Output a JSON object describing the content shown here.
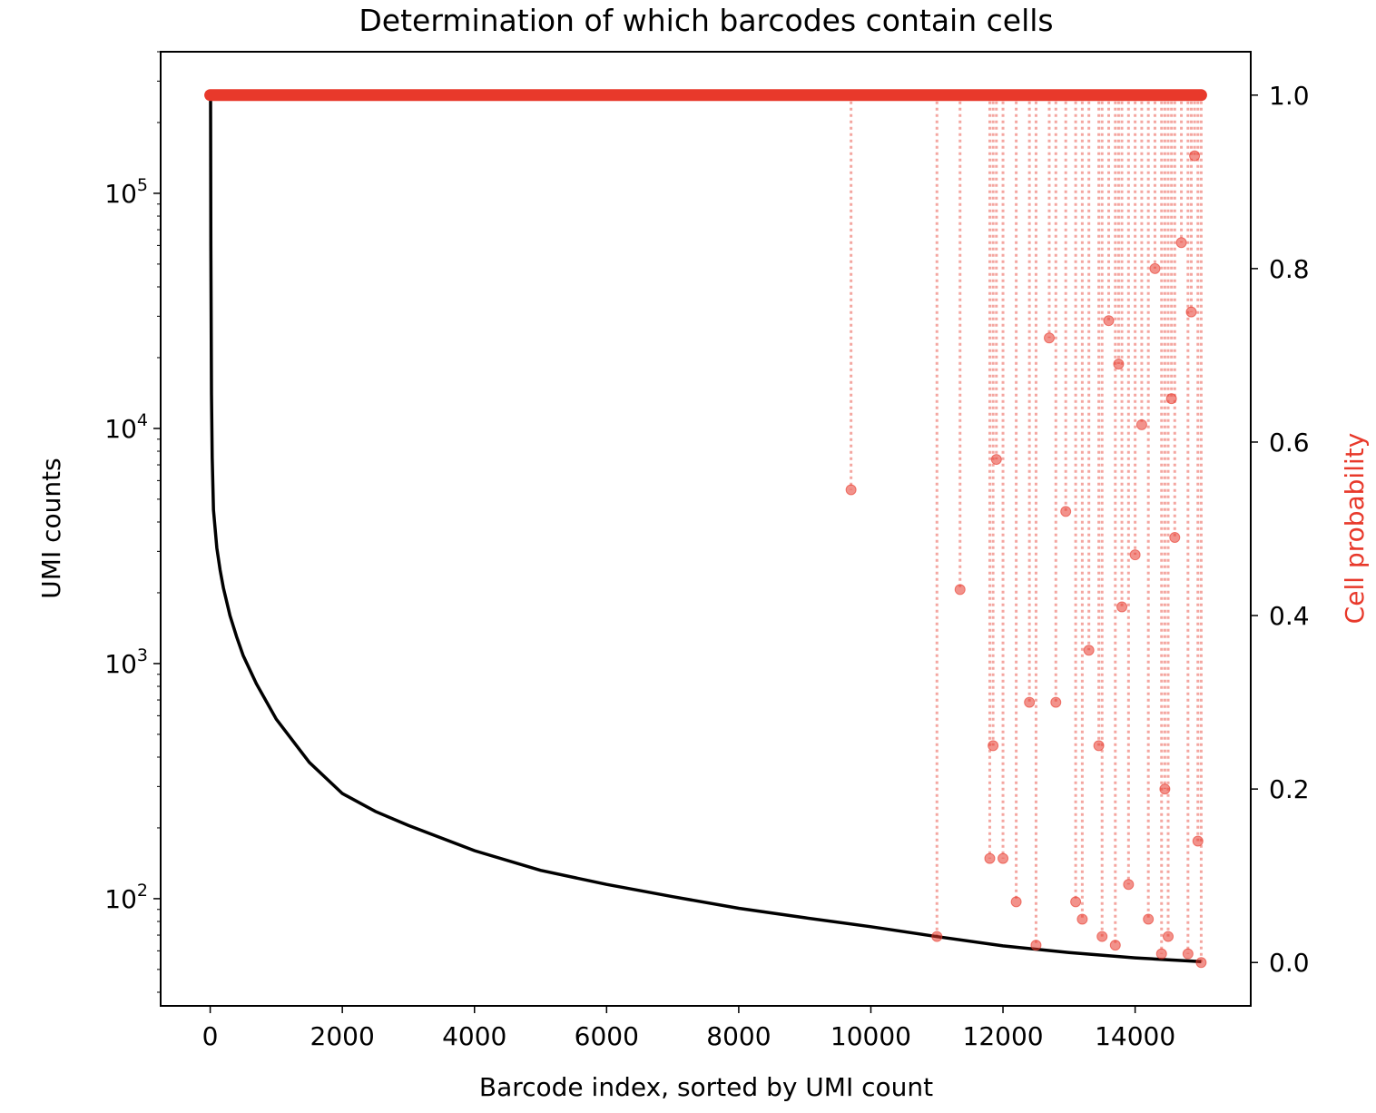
{
  "chart_data": {
    "type": "line",
    "title": "Determination of which barcodes contain cells",
    "xlabel": "Barcode index, sorted by UMI count",
    "ylabel": "UMI counts",
    "y2label": "Cell probability",
    "xlim": [
      -750,
      15750
    ],
    "xticks": [
      0,
      2000,
      4000,
      6000,
      8000,
      10000,
      12000,
      14000
    ],
    "xtick_labels": [
      "0",
      "2000",
      "4000",
      "6000",
      "8000",
      "10000",
      "12000",
      "14000"
    ],
    "yscale": "log",
    "ylim": [
      35,
      400000
    ],
    "yticks": [
      100,
      1000,
      10000,
      100000
    ],
    "ytick_labels": [
      {
        "base": "10",
        "exp": "2"
      },
      {
        "base": "10",
        "exp": "3"
      },
      {
        "base": "10",
        "exp": "4"
      },
      {
        "base": "10",
        "exp": "5"
      }
    ],
    "y2lim": [
      -0.05,
      1.05
    ],
    "y2ticks": [
      0.0,
      0.2,
      0.4,
      0.6,
      0.8,
      1.0
    ],
    "y2tick_labels": [
      "0.0",
      "0.2",
      "0.4",
      "0.6",
      "0.8",
      "1.0"
    ],
    "grid": false,
    "colors": {
      "umi": "#000000",
      "prob": "#e8392b",
      "prob_light": "#f4a6a0"
    },
    "series": [
      {
        "axis": "left",
        "x": [
          0,
          5,
          10,
          20,
          30,
          50,
          100,
          150,
          200,
          300,
          400,
          500,
          700,
          1000,
          1500,
          2000,
          2500,
          3000,
          4000,
          5000,
          6000,
          7000,
          8000,
          9000,
          10000,
          11000,
          12000,
          13000,
          14000,
          14500,
          15000
        ],
        "y": [
          270000,
          250000,
          60000,
          14000,
          7500,
          4500,
          3100,
          2500,
          2100,
          1600,
          1300,
          1080,
          820,
          580,
          380,
          280,
          235,
          205,
          160,
          132,
          115,
          102,
          91,
          83,
          76,
          69,
          63,
          59,
          56,
          55,
          54
        ]
      },
      {
        "axis": "right",
        "x": [
          0,
          9700,
          11000,
          11350,
          11800,
          11850,
          11900,
          12000,
          12200,
          12400,
          12500,
          12700,
          12800,
          12950,
          13100,
          13200,
          13300,
          13450,
          13500,
          13600,
          13700,
          13750,
          13800,
          13900,
          14000,
          14100,
          14200,
          14300,
          14400,
          14450,
          14500,
          14550,
          14600,
          14700,
          14800,
          14850,
          14900,
          14950,
          15000
        ],
        "y": [
          1.0,
          0.545,
          0.03,
          0.43,
          0.12,
          0.25,
          0.58,
          0.12,
          0.07,
          0.3,
          0.02,
          0.72,
          0.3,
          0.52,
          0.07,
          0.05,
          0.36,
          0.25,
          0.03,
          0.74,
          0.02,
          0.69,
          0.41,
          0.09,
          0.47,
          0.62,
          0.05,
          0.8,
          0.01,
          0.2,
          0.03,
          0.65,
          0.49,
          0.83,
          0.01,
          0.75,
          0.93,
          0.14,
          0.0
        ]
      }
    ]
  }
}
